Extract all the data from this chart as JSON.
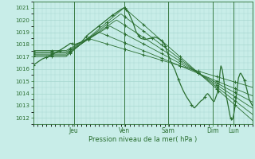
{
  "xlabel": "Pression niveau de la mer( hPa )",
  "bg_color": "#c8ede8",
  "grid_color": "#a8d8d0",
  "line_color": "#2a6e30",
  "ylim": [
    1011.5,
    1021.5
  ],
  "yticks": [
    1012,
    1013,
    1014,
    1015,
    1016,
    1017,
    1018,
    1019,
    1020,
    1021
  ],
  "day_labels": [
    "Jeu",
    "Ven",
    "Sam",
    "Dim",
    "Lun"
  ],
  "day_positions": [
    0.185,
    0.415,
    0.615,
    0.82,
    0.915
  ]
}
